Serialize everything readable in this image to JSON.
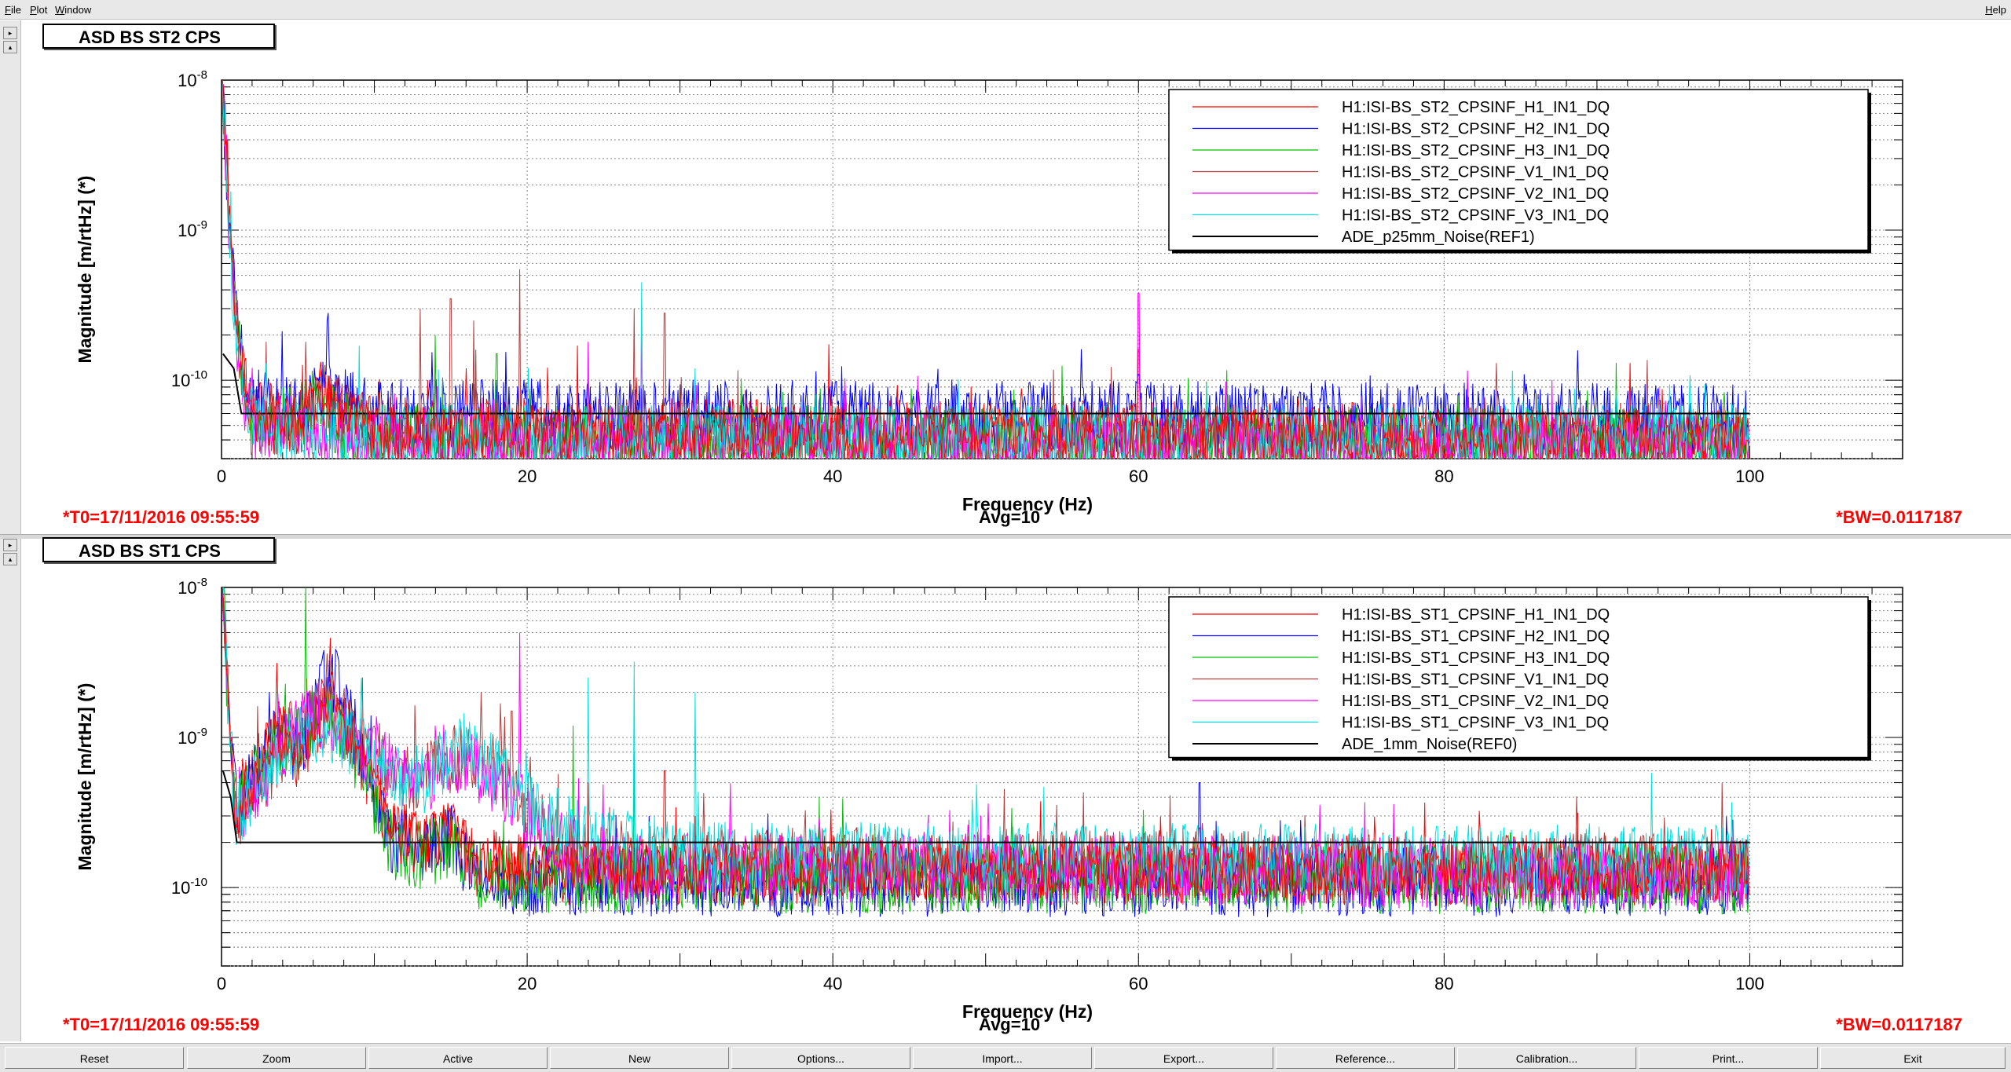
{
  "menu": {
    "file": "File",
    "plot": "Plot",
    "window": "Window",
    "help": "Help"
  },
  "colors": {
    "H1": "#ff0000",
    "H2": "#0000ff",
    "H3": "#00c000",
    "V1": "#b04040",
    "V2": "#ff00ff",
    "V3": "#00e0e0",
    "REF": "#000000",
    "status_red": "#ff0000"
  },
  "panels": [
    {
      "title": "ASD BS ST2 CPS",
      "t0": "*T0=17/11/2016 09:55:59",
      "avg": "Avg=10",
      "bw": "*BW=0.0117187",
      "chart_data": {
        "type": "line",
        "title": "ASD BS ST2 CPS",
        "xlabel": "Frequency (Hz)",
        "ylabel": "Magnitude [m/rtHz] (*)",
        "xlim": [
          0,
          110
        ],
        "ylim": [
          3e-11,
          1e-08
        ],
        "yscale": "log",
        "xticks": [
          "0",
          "20",
          "40",
          "60",
          "80",
          "100"
        ],
        "yticks": [
          "10^-8",
          "10^-9",
          "10^-10"
        ],
        "grid": true,
        "legend_position": "top-right",
        "series": [
          {
            "name": "H1:ISI-BS_ST2_CPSINF_H1_IN1_DQ",
            "color": "#ff0000",
            "floor": 4e-11,
            "low_freq": [
              [
                0.05,
                1e-08
              ],
              [
                0.3,
                4e-09
              ],
              [
                0.6,
                8e-10
              ],
              [
                1,
                3e-10
              ],
              [
                1.5,
                1e-10
              ],
              [
                2,
                6e-11
              ],
              [
                5,
                5e-11
              ],
              [
                6.5,
                8e-11
              ],
              [
                7,
                7e-11
              ],
              [
                10,
                4.5e-11
              ],
              [
                100,
                4e-11
              ]
            ],
            "peaks": [
              [
                60,
                1.6e-10
              ],
              [
                16,
                1.2e-10
              ],
              [
                13.5,
                1e-10
              ]
            ]
          },
          {
            "name": "H1:ISI-BS_ST2_CPSINF_H2_IN1_DQ",
            "color": "#0000ff",
            "floor": 5.5e-11,
            "low_freq": [
              [
                0.05,
                1e-08
              ],
              [
                0.3,
                3e-09
              ],
              [
                0.6,
                7e-10
              ],
              [
                1,
                2.5e-10
              ],
              [
                1.5,
                1.1e-10
              ],
              [
                2,
                7e-11
              ],
              [
                5,
                6e-11
              ],
              [
                6.5,
                9e-11
              ],
              [
                7,
                8e-11
              ],
              [
                10,
                6e-11
              ],
              [
                100,
                5.5e-11
              ]
            ],
            "peaks": [
              [
                60,
                1.1e-10
              ],
              [
                17,
                1e-10
              ]
            ]
          },
          {
            "name": "H1:ISI-BS_ST2_CPSINF_H3_IN1_DQ",
            "color": "#00c000",
            "floor": 3.8e-11,
            "low_freq": [
              [
                0.05,
                9e-09
              ],
              [
                0.3,
                3e-09
              ],
              [
                0.6,
                6e-10
              ],
              [
                1,
                2e-10
              ],
              [
                1.5,
                9e-11
              ],
              [
                2,
                5e-11
              ],
              [
                6.5,
                6e-11
              ],
              [
                10,
                4e-11
              ],
              [
                100,
                3.8e-11
              ]
            ],
            "peaks": [
              [
                14,
                2e-10
              ],
              [
                18,
                1.5e-10
              ]
            ]
          },
          {
            "name": "H1:ISI-BS_ST2_CPSINF_V1_IN1_DQ",
            "color": "#b04040",
            "floor": 3.8e-11,
            "low_freq": [
              [
                0.05,
                9e-09
              ],
              [
                0.3,
                3e-09
              ],
              [
                0.6,
                6e-10
              ],
              [
                1,
                2e-10
              ],
              [
                1.5,
                9e-11
              ],
              [
                2,
                5e-11
              ],
              [
                6.5,
                6e-11
              ],
              [
                10,
                4e-11
              ],
              [
                100,
                3.8e-11
              ]
            ],
            "peaks": [
              [
                13,
                3e-10
              ],
              [
                15,
                3.5e-10
              ],
              [
                16.5,
                2.5e-10
              ],
              [
                19.5,
                5.5e-10
              ],
              [
                27,
                3e-10
              ],
              [
                29,
                2.8e-10
              ],
              [
                5.5,
                1.8e-10
              ]
            ]
          },
          {
            "name": "H1:ISI-BS_ST2_CPSINF_V2_IN1_DQ",
            "color": "#ff00ff",
            "floor": 3.5e-11,
            "low_freq": [
              [
                0.05,
                9e-09
              ],
              [
                0.3,
                3e-09
              ],
              [
                0.6,
                6e-10
              ],
              [
                1,
                2e-10
              ],
              [
                1.5,
                8e-11
              ],
              [
                2,
                5e-11
              ],
              [
                10,
                3.7e-11
              ],
              [
                100,
                3.5e-11
              ]
            ],
            "peaks": [
              [
                60,
                3.8e-10
              ],
              [
                24,
                1.8e-10
              ],
              [
                27.5,
                2.2e-10
              ]
            ]
          },
          {
            "name": "H1:ISI-BS_ST2_CPSINF_V3_IN1_DQ",
            "color": "#00e0e0",
            "floor": 4e-11,
            "low_freq": [
              [
                0.05,
                9e-09
              ],
              [
                0.3,
                3e-09
              ],
              [
                0.6,
                6e-10
              ],
              [
                1,
                2e-10
              ],
              [
                1.5,
                9e-11
              ],
              [
                2,
                5e-11
              ],
              [
                10,
                4e-11
              ],
              [
                100,
                4e-11
              ]
            ],
            "peaks": [
              [
                27.5,
                4.5e-10
              ],
              [
                31,
                1.2e-10
              ]
            ]
          },
          {
            "name": "ADE_p25mm_Noise(REF1)",
            "color": "#000000",
            "reference": true,
            "points": [
              [
                0.1,
                1.5e-10
              ],
              [
                0.8,
                1.2e-10
              ],
              [
                1.3,
                6e-11
              ],
              [
                100,
                6e-11
              ]
            ]
          }
        ]
      }
    },
    {
      "title": "ASD BS ST1 CPS",
      "t0": "*T0=17/11/2016 09:55:59",
      "avg": "Avg=10",
      "bw": "*BW=0.0117187",
      "chart_data": {
        "type": "line",
        "title": "ASD BS ST1 CPS",
        "xlabel": "Frequency (Hz)",
        "ylabel": "Magnitude [m/rtHz] (*)",
        "xlim": [
          0,
          110
        ],
        "ylim": [
          3e-11,
          1e-08
        ],
        "yscale": "log",
        "xticks": [
          "0",
          "20",
          "40",
          "60",
          "80",
          "100"
        ],
        "yticks": [
          "10^-8",
          "10^-9",
          "10^-10"
        ],
        "grid": true,
        "legend_position": "top-right",
        "series": [
          {
            "name": "H1:ISI-BS_ST1_CPSINF_H1_IN1_DQ",
            "color": "#ff0000",
            "floor": 1.3e-10,
            "low_freq": [
              [
                0.1,
                1e-08
              ],
              [
                0.5,
                1e-09
              ],
              [
                1,
                3e-10
              ],
              [
                2,
                5e-10
              ],
              [
                3.5,
                1.2e-09
              ],
              [
                5,
                7e-10
              ],
              [
                7,
                2e-09
              ],
              [
                9,
                8e-10
              ],
              [
                11,
                2.5e-10
              ],
              [
                13,
                1.8e-10
              ],
              [
                15,
                2.5e-10
              ],
              [
                16.5,
                1.5e-10
              ],
              [
                20,
                1.3e-10
              ],
              [
                100,
                1.3e-10
              ]
            ],
            "peaks": [
              [
                24,
                5e-10
              ],
              [
                29,
                6e-10
              ],
              [
                31,
                3e-10
              ],
              [
                53,
                2e-10
              ],
              [
                64,
                2.5e-10
              ]
            ]
          },
          {
            "name": "H1:ISI-BS_ST1_CPSINF_H2_IN1_DQ",
            "color": "#0000ff",
            "floor": 1.1e-10,
            "low_freq": [
              [
                0.1,
                1e-08
              ],
              [
                0.5,
                1e-09
              ],
              [
                1,
                3e-10
              ],
              [
                2,
                5e-10
              ],
              [
                3.5,
                1e-09
              ],
              [
                5,
                8e-10
              ],
              [
                7,
                3e-09
              ],
              [
                9,
                9e-10
              ],
              [
                11,
                2.2e-10
              ],
              [
                13,
                1.7e-10
              ],
              [
                15,
                2.2e-10
              ],
              [
                16.5,
                1.2e-10
              ],
              [
                20,
                1.1e-10
              ],
              [
                100,
                1.1e-10
              ]
            ],
            "peaks": [
              [
                64,
                5e-10
              ],
              [
                28,
                3e-10
              ]
            ]
          },
          {
            "name": "H1:ISI-BS_ST1_CPSINF_H3_IN1_DQ",
            "color": "#00c000",
            "floor": 1.15e-10,
            "low_freq": [
              [
                0.1,
                1e-08
              ],
              [
                0.5,
                1e-09
              ],
              [
                1,
                3e-10
              ],
              [
                2,
                5e-10
              ],
              [
                3.5,
                9e-10
              ],
              [
                5,
                9e-10
              ],
              [
                7,
                1.8e-09
              ],
              [
                9,
                7e-10
              ],
              [
                11,
                2e-10
              ],
              [
                13,
                1.6e-10
              ],
              [
                15,
                2e-10
              ],
              [
                16.5,
                1.2e-10
              ],
              [
                20,
                1.15e-10
              ],
              [
                100,
                1.15e-10
              ]
            ],
            "peaks": [
              [
                5.5,
                1e-08
              ],
              [
                23,
                1.2e-09
              ],
              [
                27,
                8e-10
              ]
            ]
          },
          {
            "name": "H1:ISI-BS_ST1_CPSINF_V1_IN1_DQ",
            "color": "#b04040",
            "floor": 1.3e-10,
            "low_freq": [
              [
                0.1,
                9e-09
              ],
              [
                0.5,
                1e-09
              ],
              [
                1,
                3e-10
              ],
              [
                3,
                6e-10
              ],
              [
                5,
                1.2e-09
              ],
              [
                7,
                1.5e-09
              ],
              [
                10,
                8e-10
              ],
              [
                13,
                5e-10
              ],
              [
                16,
                8e-10
              ],
              [
                18,
                6e-10
              ],
              [
                20,
                3.5e-10
              ],
              [
                22,
                2e-10
              ],
              [
                25,
                1.5e-10
              ],
              [
                100,
                1.3e-10
              ]
            ],
            "peaks": [
              [
                17,
                2e-09
              ],
              [
                19,
                1.5e-09
              ]
            ]
          },
          {
            "name": "H1:ISI-BS_ST1_CPSINF_V2_IN1_DQ",
            "color": "#ff00ff",
            "floor": 1.2e-10,
            "low_freq": [
              [
                0.1,
                9e-09
              ],
              [
                0.5,
                1e-09
              ],
              [
                1,
                3e-10
              ],
              [
                3,
                6e-10
              ],
              [
                5,
                1.2e-09
              ],
              [
                7,
                1.4e-09
              ],
              [
                10,
                7e-10
              ],
              [
                13,
                5e-10
              ],
              [
                16,
                7e-10
              ],
              [
                18,
                5e-10
              ],
              [
                20,
                3e-10
              ],
              [
                22,
                2e-10
              ],
              [
                25,
                1.4e-10
              ],
              [
                100,
                1.2e-10
              ]
            ],
            "peaks": [
              [
                19.5,
                5e-09
              ],
              [
                14,
                1.2e-09
              ]
            ]
          },
          {
            "name": "H1:ISI-BS_ST1_CPSINF_V3_IN1_DQ",
            "color": "#00e0e0",
            "floor": 1.5e-10,
            "low_freq": [
              [
                0.1,
                9e-09
              ],
              [
                0.5,
                1e-09
              ],
              [
                1,
                3e-10
              ],
              [
                3,
                6e-10
              ],
              [
                5,
                1e-09
              ],
              [
                7,
                1.2e-09
              ],
              [
                10,
                7e-10
              ],
              [
                13,
                5e-10
              ],
              [
                16,
                9e-10
              ],
              [
                18,
                6e-10
              ],
              [
                20,
                3.5e-10
              ],
              [
                24,
                2.2e-10
              ],
              [
                30,
                1.6e-10
              ],
              [
                100,
                1.5e-10
              ]
            ],
            "peaks": [
              [
                27,
                3.2e-09
              ],
              [
                24,
                2.5e-09
              ],
              [
                31,
                2e-09
              ]
            ]
          },
          {
            "name": "ADE_1mm_Noise(REF0)",
            "color": "#000000",
            "reference": true,
            "points": [
              [
                0.1,
                6e-10
              ],
              [
                0.6,
                4e-10
              ],
              [
                1,
                2e-10
              ],
              [
                100,
                2e-10
              ]
            ]
          }
        ]
      }
    }
  ],
  "toolbar": {
    "reset": "Reset",
    "zoom": "Zoom",
    "active": "Active",
    "new": "New",
    "options": "Options...",
    "import": "Import...",
    "export": "Export...",
    "reference": "Reference...",
    "calibration": "Calibration...",
    "print": "Print...",
    "exit": "Exit"
  }
}
